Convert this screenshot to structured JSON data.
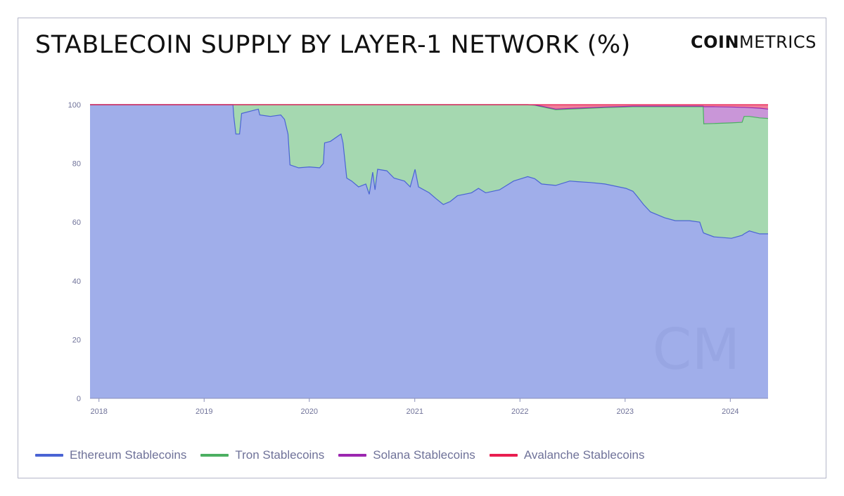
{
  "header": {
    "title": "STABLECOIN SUPPLY BY LAYER-1 NETWORK (%)",
    "logo_bold": "COIN",
    "logo_light": "METRICS",
    "watermark": "CM"
  },
  "chart_data": {
    "type": "area",
    "stacked": true,
    "title": "STABLECOIN SUPPLY BY LAYER-1 NETWORK (%)",
    "xlabel": "",
    "ylabel": "",
    "ylim": [
      0,
      100
    ],
    "xlim": [
      "2017-12-01",
      "2024-05-11"
    ],
    "yticks": [
      0,
      20,
      40,
      60,
      80,
      100
    ],
    "xticks": [
      "2018",
      "2019",
      "2020",
      "2021",
      "2022",
      "2023",
      "2024"
    ],
    "grid": false,
    "legend_position": "bottom",
    "dates": [
      "2017-12-01",
      "2019-04-11",
      "2019-04-14",
      "2019-04-21",
      "2019-05-04",
      "2019-05-11",
      "2019-07-08",
      "2019-07-13",
      "2019-08-19",
      "2019-09-24",
      "2019-10-07",
      "2019-10-19",
      "2019-10-26",
      "2019-11-25",
      "2020-01-01",
      "2020-02-06",
      "2020-02-19",
      "2020-02-23",
      "2020-03-14",
      "2020-04-20",
      "2020-04-27",
      "2020-05-10",
      "2020-05-27",
      "2020-06-20",
      "2020-07-15",
      "2020-07-27",
      "2020-08-08",
      "2020-08-16",
      "2020-08-25",
      "2020-09-26",
      "2020-10-21",
      "2020-11-26",
      "2020-12-16",
      "2021-01-02",
      "2021-01-14",
      "2021-02-20",
      "2021-03-16",
      "2021-04-10",
      "2021-05-04",
      "2021-05-29",
      "2021-07-17",
      "2021-08-10",
      "2021-09-04",
      "2021-10-22",
      "2021-12-10",
      "2022-01-28",
      "2022-02-21",
      "2022-03-17",
      "2022-05-05",
      "2022-06-23",
      "2022-07-17",
      "2022-09-04",
      "2022-10-23",
      "2023-01-04",
      "2023-01-28",
      "2023-02-10",
      "2023-03-06",
      "2023-03-30",
      "2023-05-18",
      "2023-06-24",
      "2023-08-12",
      "2023-09-17",
      "2023-09-29",
      "2023-10-01",
      "2023-11-05",
      "2024-01-05",
      "2024-02-11",
      "2024-02-18",
      "2024-03-07",
      "2024-04-12",
      "2024-05-11"
    ],
    "series": [
      {
        "name": "Ethereum Stablecoins",
        "color": "#4a64d4",
        "fill": "#a0aeea",
        "values": [
          100,
          100,
          96,
          90,
          90,
          97,
          98.5,
          96.5,
          96,
          96.5,
          95,
          90,
          79.5,
          78.5,
          78.8,
          78.5,
          80,
          87,
          87.5,
          90,
          87,
          75,
          74,
          72,
          73,
          69.5,
          77,
          71,
          78,
          77.5,
          75,
          74,
          72,
          78,
          72,
          70,
          68,
          66,
          67,
          69,
          70,
          71.5,
          70,
          71,
          74,
          75.5,
          74.8,
          73,
          72.5,
          74,
          73.8,
          73.5,
          73,
          71.5,
          70.5,
          69,
          66,
          63.5,
          61.5,
          60.5,
          60.5,
          60,
          56.5,
          56.3,
          55,
          54.5,
          55.5,
          56,
          57,
          56,
          56
        ]
      },
      {
        "name": "Tron Stablecoins",
        "color": "#4caf62",
        "fill": "#a5d8b0",
        "values": [
          0,
          0,
          4,
          10,
          10,
          3,
          1.5,
          3.5,
          4,
          3.5,
          5,
          10,
          20.5,
          21.5,
          21.2,
          21.5,
          20,
          13,
          12.5,
          10,
          13,
          25,
          26,
          28,
          27,
          30.5,
          23,
          29,
          22,
          22.5,
          25,
          26,
          28,
          22,
          28,
          30,
          32,
          34,
          33,
          31,
          30,
          28.5,
          30,
          29,
          26,
          24.5,
          25,
          26.3,
          25.8,
          24.5,
          24.8,
          25.3,
          26,
          27.7,
          28.8,
          30.3,
          33.3,
          35.8,
          37.8,
          38.8,
          38.8,
          39.3,
          42.8,
          37.2,
          38.6,
          39.3,
          38.5,
          40,
          39,
          39.5,
          39.3
        ]
      },
      {
        "name": "Solana Stablecoins",
        "color": "#9c27b0",
        "fill": "#c996d8",
        "values": [
          0,
          0,
          0,
          0,
          0,
          0,
          0,
          0,
          0,
          0,
          0,
          0,
          0,
          0,
          0,
          0,
          0,
          0,
          0,
          0,
          0,
          0,
          0,
          0,
          0,
          0,
          0,
          0,
          0,
          0,
          0,
          0,
          0,
          0,
          0,
          0,
          0,
          0,
          0,
          0,
          0,
          0,
          0,
          0,
          0,
          0,
          0.1,
          0.2,
          0.2,
          0.2,
          0.2,
          0.2,
          0.2,
          0.2,
          0.2,
          0.2,
          0.2,
          0.2,
          0.2,
          0.2,
          0.2,
          0.2,
          0.2,
          5.8,
          5.7,
          5.4,
          5.1,
          3.1,
          3,
          3.3,
          3.2
        ]
      },
      {
        "name": "Avalanche Stablecoins",
        "color": "#e91e50",
        "fill": "#ef7f98",
        "values": [
          0,
          0,
          0,
          0,
          0,
          0,
          0,
          0,
          0,
          0,
          0,
          0,
          0,
          0,
          0,
          0,
          0,
          0,
          0,
          0,
          0,
          0,
          0,
          0,
          0,
          0,
          0,
          0,
          0,
          0,
          0,
          0,
          0,
          0,
          0,
          0,
          0,
          0,
          0,
          0,
          0,
          0,
          0,
          0,
          0,
          0,
          0.1,
          0.5,
          1.5,
          1.3,
          1.2,
          1,
          0.8,
          0.6,
          0.5,
          0.5,
          0.5,
          0.5,
          0.5,
          0.5,
          0.5,
          0.5,
          0.5,
          0.7,
          0.7,
          0.8,
          0.9,
          0.9,
          1,
          1.2,
          1.5
        ]
      }
    ]
  }
}
